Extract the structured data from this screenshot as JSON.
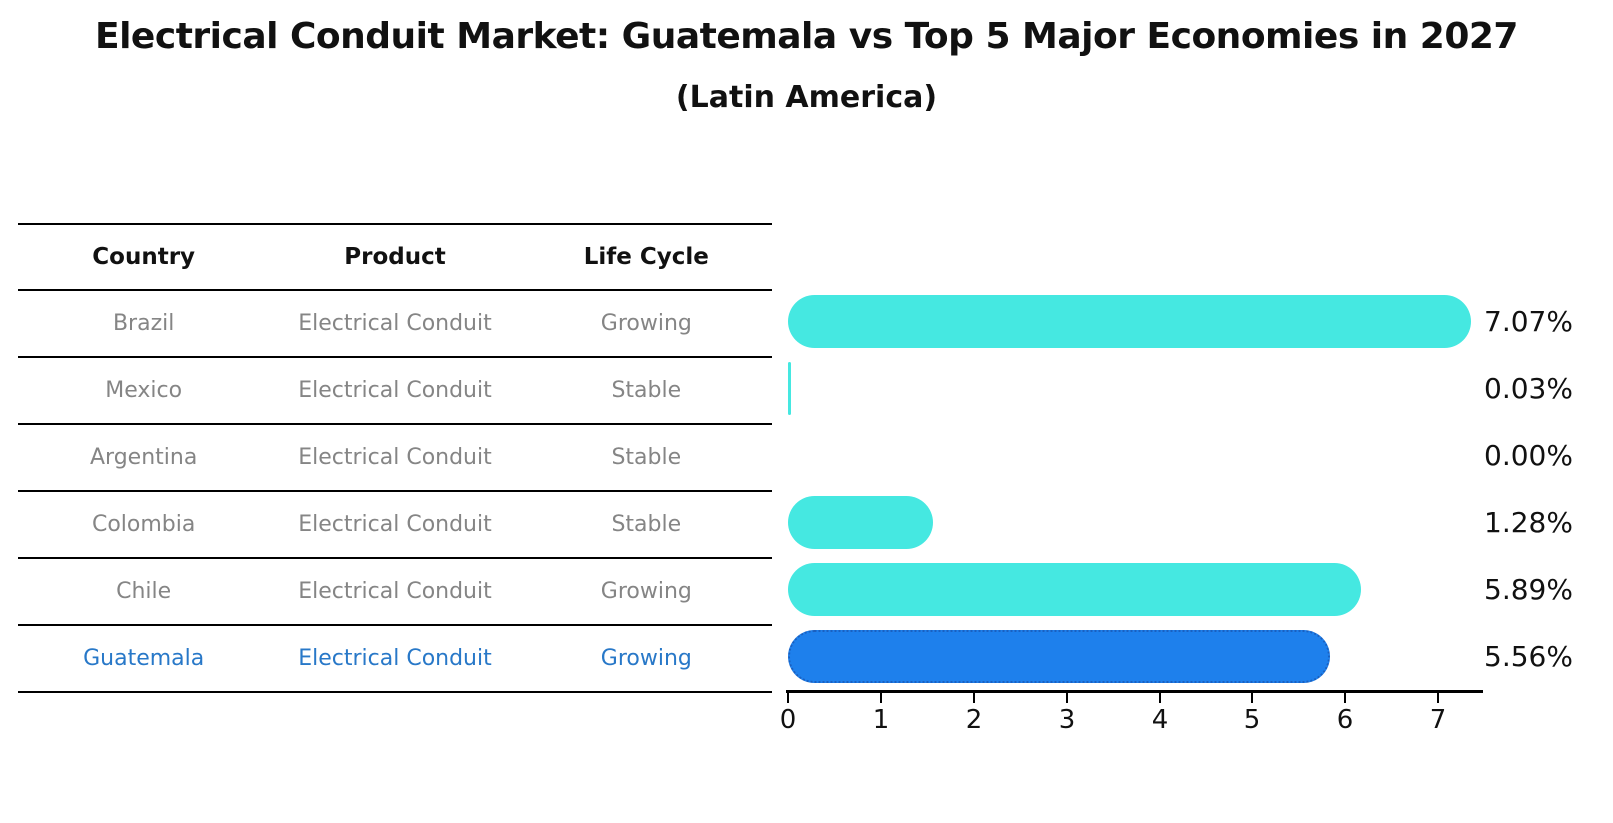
{
  "title": "Electrical Conduit Market: Guatemala vs Top 5 Major Economies in 2027",
  "subtitle": "(Latin America)",
  "table": {
    "headers": [
      "Country",
      "Product",
      "Life Cycle"
    ],
    "rows": [
      {
        "country": "Brazil",
        "product": "Electrical Conduit",
        "life_cycle": "Growing",
        "highlight": false
      },
      {
        "country": "Mexico",
        "product": "Electrical Conduit",
        "life_cycle": "Stable",
        "highlight": false
      },
      {
        "country": "Argentina",
        "product": "Electrical Conduit",
        "life_cycle": "Stable",
        "highlight": false
      },
      {
        "country": "Colombia",
        "product": "Electrical Conduit",
        "life_cycle": "Stable",
        "highlight": false
      },
      {
        "country": "Chile",
        "product": "Electrical Conduit",
        "life_cycle": "Growing",
        "highlight": false
      },
      {
        "country": "Guatemala",
        "product": "Electrical Conduit",
        "life_cycle": "Growing",
        "highlight": true
      }
    ]
  },
  "chart_data": {
    "type": "bar",
    "orientation": "horizontal",
    "title": "Electrical Conduit Market: Guatemala vs Top 5 Major Economies in 2027 (Latin America)",
    "categories": [
      "Brazil",
      "Mexico",
      "Argentina",
      "Colombia",
      "Chile",
      "Guatemala"
    ],
    "values": [
      7.07,
      0.03,
      0.0,
      1.28,
      5.89,
      5.56
    ],
    "value_labels": [
      "7.07%",
      "0.03%",
      "0.00%",
      "1.28%",
      "5.89%",
      "5.56%"
    ],
    "unit": "percent CAGR/market growth",
    "xlim": [
      0,
      7.45
    ],
    "x_ticks": [
      0,
      1,
      2,
      3,
      4,
      5,
      6,
      7
    ],
    "grid": false,
    "legend": "none",
    "bar_color": "#45e8e1",
    "highlight_index": 5,
    "highlight_color": "#1e80ec",
    "highlight_edge_color": "#1a60c0",
    "highlight_edge_style": "dotted"
  },
  "colors": {
    "background": "#ffffff",
    "table_line": "#000000",
    "row_text": "#858585",
    "highlight_text": "#2878c8",
    "axis": "#000000"
  }
}
